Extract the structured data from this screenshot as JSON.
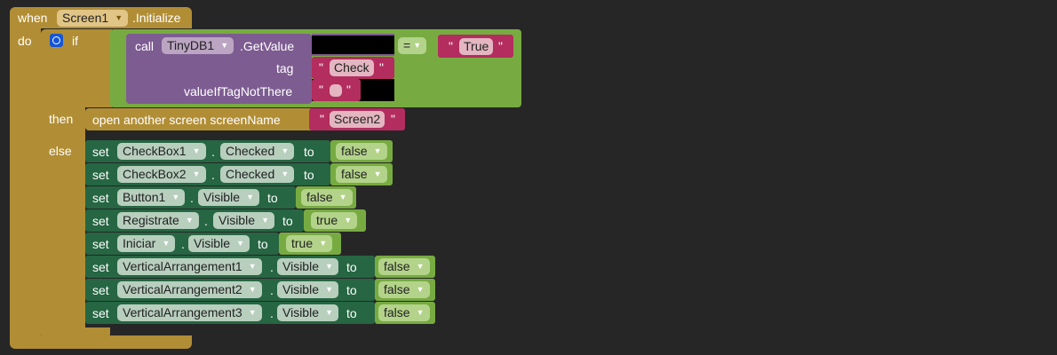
{
  "event": {
    "when_label": "when",
    "component": "Screen1",
    "event_name": ".Initialize",
    "do_label": "do"
  },
  "if_block": {
    "if_label": "if",
    "then_label": "then",
    "else_label": "else"
  },
  "getvalue": {
    "call_label": "call",
    "component": "TinyDB1",
    "method": ".GetValue",
    "tag_label": "tag",
    "tag_value": "Check",
    "default_label": "valueIfTagNotThere",
    "default_value": ""
  },
  "compare": {
    "operator": "=",
    "right_value": "True"
  },
  "then_action": {
    "label": "open another screen  screenName",
    "screen_value": "Screen2"
  },
  "quote": "\"",
  "set_label": "set",
  "to_label": "to",
  "dot": ".",
  "else_actions": [
    {
      "component": "CheckBox1",
      "property": "Checked",
      "value": "false"
    },
    {
      "component": "CheckBox2",
      "property": "Checked",
      "value": "false"
    },
    {
      "component": "Button1",
      "property": "Visible",
      "value": "false"
    },
    {
      "component": "Registrate",
      "property": "Visible",
      "value": "true"
    },
    {
      "component": "Iniciar",
      "property": "Visible",
      "value": "true"
    },
    {
      "component": "VerticalArrangement1",
      "property": "Visible",
      "value": "false"
    },
    {
      "component": "VerticalArrangement2",
      "property": "Visible",
      "value": "false"
    },
    {
      "component": "VerticalArrangement3",
      "property": "Visible",
      "value": "false"
    }
  ],
  "colors": {
    "event": "#b18e35",
    "control": "#b18e35",
    "logic": "#77ab41",
    "procedure_call": "#7d5c91",
    "text": "#b32d5e",
    "setter": "#266643",
    "background": "#262626",
    "mutator": "#1656d4"
  }
}
